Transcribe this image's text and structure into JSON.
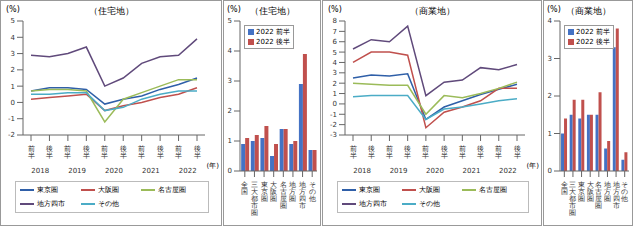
{
  "chart_data": [
    {
      "type": "line",
      "title": "（住宅地）",
      "y_label": "(%)",
      "x_label": "(年)",
      "categories": [
        "前半",
        "後半",
        "前半",
        "後半",
        "前半",
        "後半",
        "前半",
        "後半",
        "前半",
        "後半"
      ],
      "years": [
        "2018",
        "2019",
        "2020",
        "2021",
        "2022"
      ],
      "ylim": [
        -2,
        5
      ],
      "yticks": [
        -2,
        -1,
        0,
        1,
        2,
        3,
        4,
        5
      ],
      "grid": false,
      "legend": "bottom",
      "series": [
        {
          "name": "東京圏",
          "color": "#2f5fa8",
          "values": [
            0.7,
            0.9,
            0.9,
            0.8,
            -0.1,
            0.2,
            0.4,
            0.8,
            1.1,
            1.5
          ]
        },
        {
          "name": "大阪圏",
          "color": "#c0504d",
          "values": [
            0.2,
            0.3,
            0.4,
            0.5,
            -0.5,
            -0.2,
            0.0,
            0.3,
            0.5,
            0.9
          ]
        },
        {
          "name": "名古屋圏",
          "color": "#9bbb59",
          "values": [
            0.7,
            0.8,
            0.8,
            0.7,
            -1.2,
            0.2,
            0.6,
            1.0,
            1.4,
            1.4
          ]
        },
        {
          "name": "地方四市",
          "color": "#604a7b",
          "values": [
            2.9,
            2.8,
            3.0,
            3.4,
            1.0,
            1.5,
            2.4,
            2.8,
            2.9,
            3.9
          ]
        },
        {
          "name": "その他",
          "color": "#4bacc6",
          "values": [
            0.5,
            0.5,
            0.6,
            0.6,
            -0.5,
            -0.3,
            0.2,
            0.5,
            0.7,
            0.7
          ]
        }
      ]
    },
    {
      "type": "bar",
      "title": "（住宅地）",
      "y_label": "(%)",
      "categories": [
        "全国",
        "三大都市圏",
        "東京圏",
        "大阪圏",
        "名古屋圏",
        "地方圏",
        "地方四市",
        "その他"
      ],
      "ylim": [
        0,
        5
      ],
      "yticks": [
        0,
        1,
        2,
        3,
        4,
        5
      ],
      "grid": false,
      "legend": "top-left",
      "series": [
        {
          "name": "2022 前半",
          "color": "#4472c4",
          "values": [
            0.9,
            1.0,
            1.1,
            0.5,
            1.4,
            0.9,
            2.9,
            0.7
          ]
        },
        {
          "name": "2022 後半",
          "color": "#c0504d",
          "values": [
            1.1,
            1.2,
            1.5,
            0.9,
            1.4,
            1.0,
            3.9,
            0.7
          ]
        }
      ]
    },
    {
      "type": "line",
      "title": "（商業地）",
      "y_label": "(%)",
      "x_label": "(年)",
      "categories": [
        "前半",
        "後半",
        "前半",
        "後半",
        "前半",
        "後半",
        "前半",
        "後半",
        "前半",
        "後半"
      ],
      "years": [
        "2018",
        "2019",
        "2020",
        "2021",
        "2022"
      ],
      "ylim": [
        -3,
        8
      ],
      "yticks": [
        -3,
        -2,
        -1,
        0,
        1,
        2,
        3,
        4,
        5,
        6,
        7,
        8
      ],
      "grid": false,
      "legend": "bottom",
      "series": [
        {
          "name": "東京圏",
          "color": "#2f5fa8",
          "values": [
            2.5,
            2.8,
            2.7,
            2.9,
            -1.5,
            -0.3,
            0.3,
            0.9,
            1.4,
            1.9
          ]
        },
        {
          "name": "大阪圏",
          "color": "#c0504d",
          "values": [
            4.0,
            5.0,
            5.0,
            4.7,
            -2.3,
            -0.8,
            -0.3,
            0.3,
            1.5,
            1.5
          ]
        },
        {
          "name": "名古屋圏",
          "color": "#9bbb59",
          "values": [
            2.0,
            1.9,
            1.8,
            1.8,
            -1.0,
            0.8,
            0.6,
            1.0,
            1.5,
            2.1
          ]
        },
        {
          "name": "地方四市",
          "color": "#604a7b",
          "values": [
            5.3,
            6.2,
            6.0,
            7.5,
            0.8,
            2.1,
            2.3,
            3.5,
            3.3,
            3.8
          ]
        },
        {
          "name": "その他",
          "color": "#4bacc6",
          "values": [
            0.7,
            0.8,
            0.8,
            0.8,
            -1.5,
            -0.5,
            -0.3,
            0.0,
            0.3,
            0.5
          ]
        }
      ]
    },
    {
      "type": "bar",
      "title": "（商業地）",
      "y_label": "(%)",
      "categories": [
        "全国",
        "三大都市圏",
        "東京圏",
        "大阪圏",
        "名古屋圏",
        "地方圏",
        "地方四市",
        "その他"
      ],
      "ylim": [
        0,
        4
      ],
      "yticks": [
        0,
        1,
        2,
        3,
        4
      ],
      "grid": false,
      "legend": "top-left",
      "series": [
        {
          "name": "2022 前半",
          "color": "#4472c4",
          "values": [
            1.0,
            1.5,
            1.4,
            1.5,
            1.5,
            0.6,
            3.3,
            0.3
          ]
        },
        {
          "name": "2022 後半",
          "color": "#c0504d",
          "values": [
            1.4,
            1.9,
            1.9,
            1.5,
            2.1,
            0.8,
            3.8,
            0.5
          ]
        }
      ]
    }
  ]
}
